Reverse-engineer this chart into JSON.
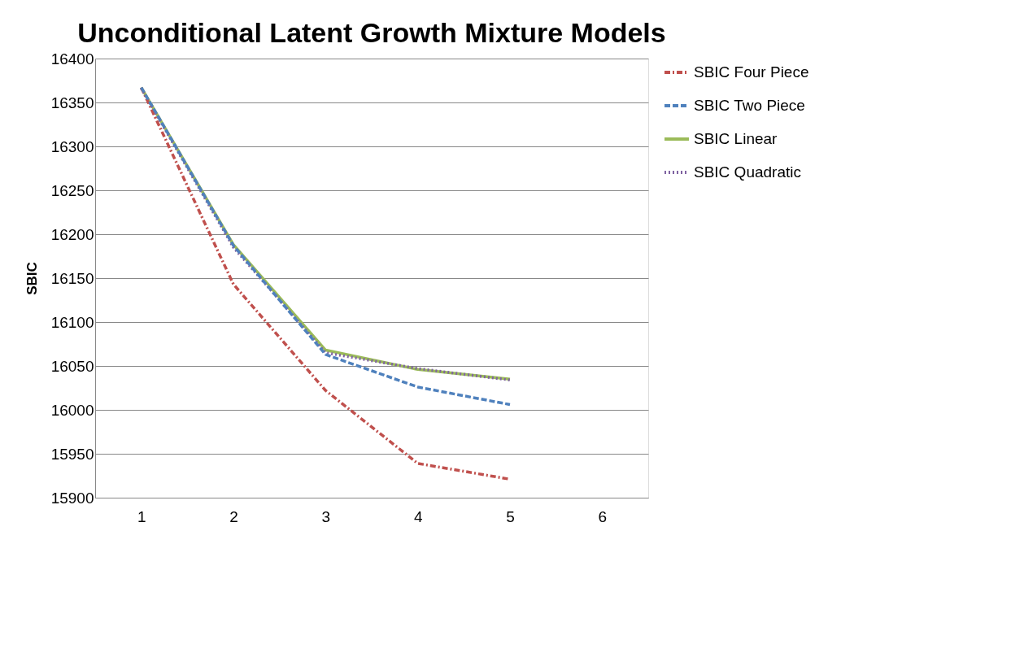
{
  "chart_data": {
    "type": "line",
    "title": "Unconditional Latent Growth Mixture Models",
    "ylabel": "SBIC",
    "categories": [
      "1",
      "2",
      "3",
      "4",
      "5",
      "6"
    ],
    "series": [
      {
        "name": "SBIC Four Piece",
        "color": "#c0504d",
        "line_style": "dashdot",
        "values": [
          16367,
          16143,
          16022,
          15939,
          15921,
          null
        ]
      },
      {
        "name": "SBIC Two Piece",
        "color": "#4f81bd",
        "line_style": "dashed",
        "values": [
          16367,
          16187,
          16063,
          16026,
          16006,
          null
        ]
      },
      {
        "name": "SBIC Linear",
        "color": "#9bbb59",
        "line_style": "solid",
        "values": [
          16367,
          16188,
          16068,
          16046,
          16035,
          null
        ]
      },
      {
        "name": "SBIC Quadratic",
        "color": "#8064a2",
        "line_style": "dotted",
        "values": [
          16366,
          16185,
          16065,
          16047,
          16034,
          null
        ]
      }
    ],
    "ylim": [
      15900,
      16400
    ],
    "yticks": [
      15900,
      15950,
      16000,
      16050,
      16100,
      16150,
      16200,
      16250,
      16300,
      16350,
      16400
    ],
    "grid": "y",
    "legend": "right"
  }
}
